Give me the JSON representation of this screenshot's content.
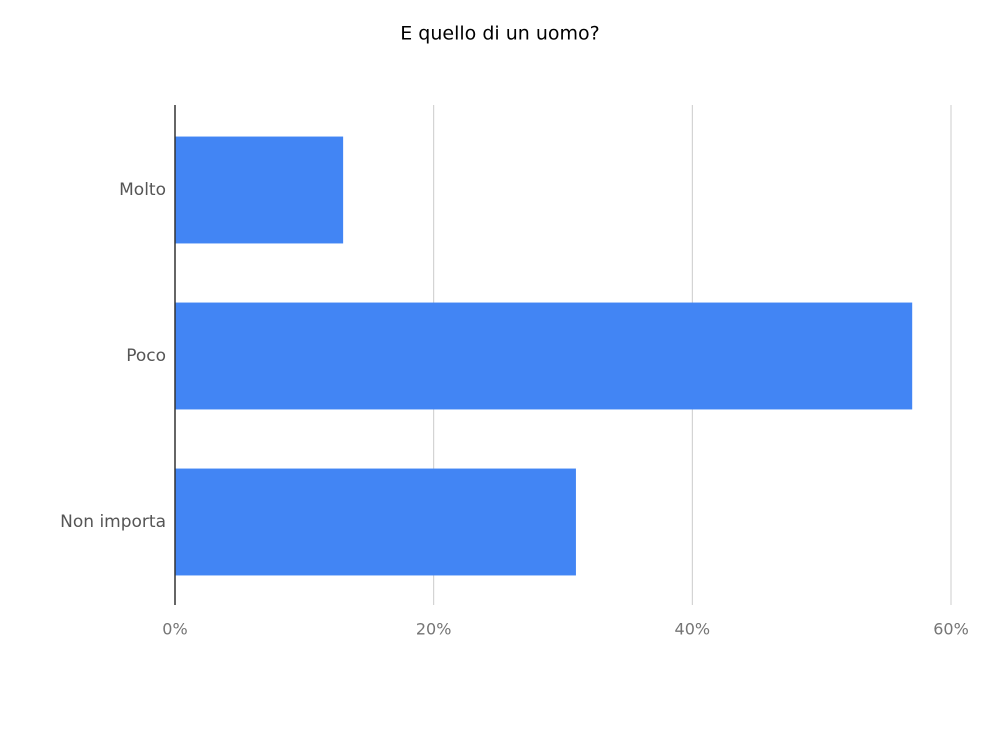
{
  "chart_data": {
    "type": "hbar",
    "title": "E quello di un uomo?",
    "categories": [
      "Molto",
      "Poco",
      "Non importa"
    ],
    "values": [
      13,
      57,
      31
    ],
    "color": "#4285f4",
    "xlim": [
      0,
      60
    ],
    "xticks": [
      {
        "value": 0,
        "label": "0%"
      },
      {
        "value": 20,
        "label": "20%"
      },
      {
        "value": 40,
        "label": "40%"
      },
      {
        "value": 60,
        "label": "60%"
      }
    ],
    "grid": true
  }
}
